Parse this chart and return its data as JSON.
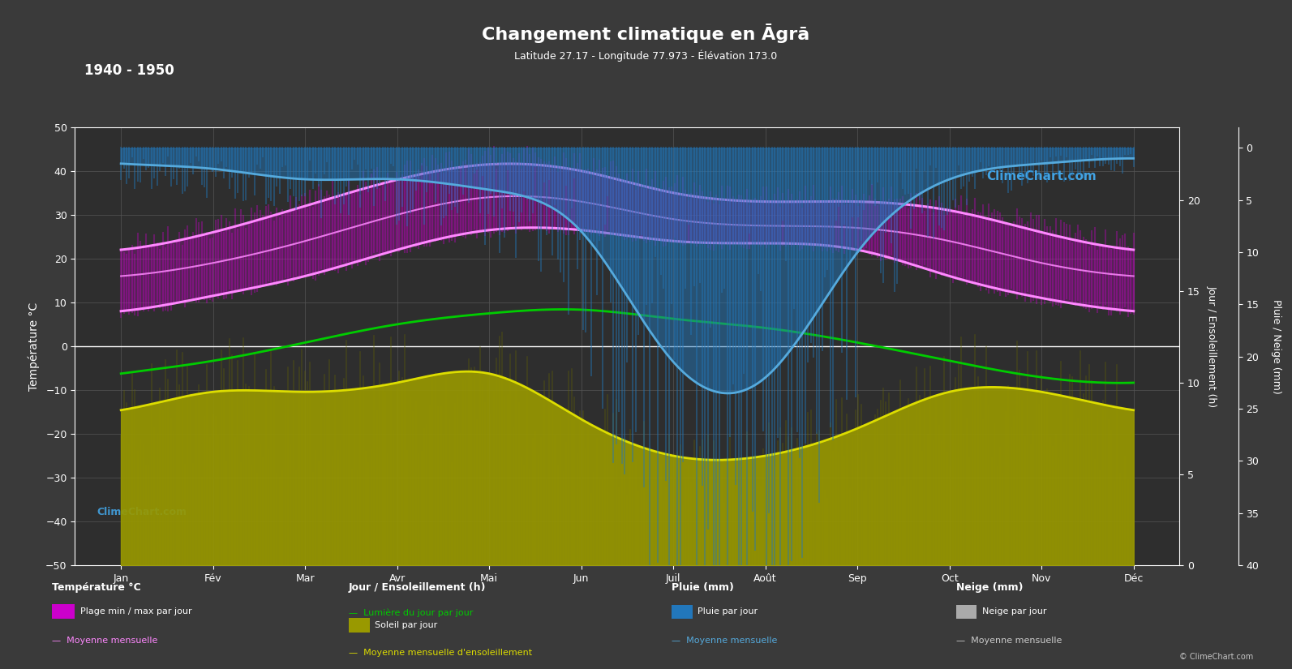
{
  "title": "Changement climatique en Āgrā",
  "subtitle": "Latitude 27.17 - Longitude 77.973 - Élévation 173.0",
  "year_range": "1940 - 1950",
  "bg_color": "#3a3a3a",
  "plot_bg_color": "#2e2e2e",
  "grid_color": "#555555",
  "text_color": "#ffffff",
  "months": [
    "Jan",
    "Fév",
    "Mar",
    "Avr",
    "Mai",
    "Jun",
    "Juil",
    "Août",
    "Sep",
    "Oct",
    "Nov",
    "Déc"
  ],
  "temp_mean_monthly": [
    16.0,
    19.0,
    24.0,
    30.0,
    34.0,
    33.0,
    29.0,
    27.5,
    27.0,
    24.0,
    19.0,
    16.0
  ],
  "temp_max_monthly": [
    22.0,
    26.0,
    32.0,
    38.0,
    41.5,
    40.0,
    35.0,
    33.0,
    33.0,
    31.0,
    26.0,
    22.0
  ],
  "temp_min_monthly": [
    8.0,
    11.5,
    16.0,
    22.0,
    26.5,
    26.5,
    24.0,
    23.5,
    22.0,
    16.0,
    11.0,
    8.0
  ],
  "daylight_monthly": [
    10.5,
    11.2,
    12.2,
    13.2,
    13.8,
    14.0,
    13.5,
    13.0,
    12.2,
    11.2,
    10.3,
    10.0
  ],
  "sunshine_monthly": [
    8.5,
    9.5,
    9.5,
    10.0,
    10.5,
    8.0,
    6.0,
    6.0,
    7.5,
    9.5,
    9.5,
    8.5
  ],
  "rain_monthly_mm": [
    1.5,
    2.0,
    3.0,
    3.0,
    4.0,
    8.0,
    20.5,
    22.0,
    10.0,
    3.0,
    1.5,
    1.0
  ],
  "temp_color_fill": "#cc00cc",
  "temp_mean_color": "#ff88ff",
  "daylight_color": "#00cc00",
  "sunshine_fill_color": "#999900",
  "sunshine_line_color": "#dddd00",
  "rain_fill_color": "#2277bb",
  "rain_line_color": "#55aadd",
  "logo_text": "ClimeChart.com",
  "copyright_text": "© ClimeChart.com",
  "ylabel_left": "Température °C",
  "ylabel_right1": "Jour / Ensoleillement (h)",
  "ylabel_right2": "Pluie / Neige (mm)"
}
